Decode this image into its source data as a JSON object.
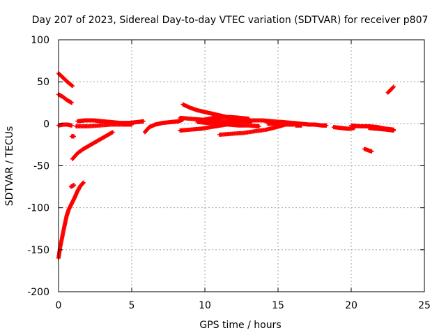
{
  "chart_data": {
    "type": "scatter",
    "title": "Day 207 of 2023, Sidereal Day-to-day VTEC variation (SDTVAR) for receiver p807",
    "xlabel": "GPS time / hours",
    "ylabel": "SDTVAR / TECUs",
    "xlim": [
      0,
      25
    ],
    "ylim": [
      -200,
      100
    ],
    "xticks": [
      0,
      5,
      10,
      15,
      20,
      25
    ],
    "yticks": [
      -200,
      -150,
      -100,
      -50,
      0,
      50,
      100
    ],
    "grid": true,
    "marker_color": "#ff0000",
    "series": [
      {
        "name": "SDTVAR",
        "tracks": [
          [
            [
              0.0,
              60
            ],
            [
              0.3,
              55
            ],
            [
              0.6,
              50
            ],
            [
              0.95,
              45
            ]
          ],
          [
            [
              0.0,
              35
            ],
            [
              0.3,
              32
            ],
            [
              0.6,
              28
            ],
            [
              0.9,
              25
            ]
          ],
          [
            [
              0.0,
              -160
            ],
            [
              0.1,
              -148
            ],
            [
              0.25,
              -135
            ],
            [
              0.4,
              -122
            ],
            [
              0.55,
              -110
            ],
            [
              0.7,
              -102
            ],
            [
              0.9,
              -95
            ],
            [
              1.1,
              -88
            ],
            [
              1.3,
              -80
            ],
            [
              1.5,
              -74
            ],
            [
              1.7,
              -70
            ]
          ],
          [
            [
              0.0,
              -2
            ],
            [
              0.3,
              -1
            ],
            [
              0.6,
              -1
            ],
            [
              0.9,
              -2
            ]
          ],
          [
            [
              0.9,
              -15
            ],
            [
              1.05,
              -15
            ]
          ],
          [
            [
              0.95,
              -42
            ],
            [
              1.3,
              -35
            ],
            [
              1.7,
              -30
            ],
            [
              2.1,
              -26
            ],
            [
              2.5,
              -22
            ],
            [
              2.9,
              -18
            ],
            [
              3.3,
              -14
            ],
            [
              3.7,
              -10
            ]
          ],
          [
            [
              0.85,
              -75
            ],
            [
              1.05,
              -73
            ]
          ],
          [
            [
              1.3,
              3
            ],
            [
              1.8,
              4
            ],
            [
              2.4,
              4
            ],
            [
              3.0,
              3
            ],
            [
              3.6,
              2
            ],
            [
              4.2,
              1
            ],
            [
              4.8,
              1
            ],
            [
              5.4,
              2
            ],
            [
              5.8,
              3
            ]
          ],
          [
            [
              1.2,
              -3
            ],
            [
              2.0,
              -3
            ],
            [
              2.8,
              -2
            ],
            [
              3.6,
              -1
            ],
            [
              4.4,
              -1
            ],
            [
              5.0,
              -1
            ]
          ],
          [
            [
              5.9,
              -10
            ],
            [
              6.2,
              -4
            ],
            [
              6.6,
              -1
            ],
            [
              7.1,
              1
            ],
            [
              7.7,
              2
            ],
            [
              8.2,
              3
            ],
            [
              8.5,
              5
            ]
          ],
          [
            [
              8.5,
              23
            ],
            [
              9.0,
              19
            ],
            [
              9.5,
              16
            ],
            [
              10.0,
              14
            ],
            [
              10.5,
              12
            ],
            [
              11.0,
              10
            ],
            [
              11.5,
              8
            ],
            [
              12.0,
              7
            ],
            [
              12.5,
              6
            ],
            [
              13.0,
              5
            ]
          ],
          [
            [
              8.3,
              -8
            ],
            [
              9.0,
              -7
            ],
            [
              9.7,
              -6
            ],
            [
              10.4,
              -4
            ],
            [
              11.1,
              -2
            ],
            [
              11.8,
              0
            ],
            [
              12.5,
              2
            ],
            [
              13.2,
              3
            ]
          ],
          [
            [
              8.3,
              7
            ],
            [
              9.0,
              6
            ],
            [
              9.7,
              5
            ],
            [
              10.4,
              4
            ],
            [
              11.1,
              3
            ],
            [
              11.8,
              3
            ],
            [
              12.5,
              3
            ]
          ],
          [
            [
              9.5,
              2
            ],
            [
              10.2,
              1
            ],
            [
              10.9,
              0
            ],
            [
              11.6,
              -1
            ],
            [
              12.3,
              -2
            ],
            [
              13.0,
              -2
            ],
            [
              13.7,
              -3
            ]
          ],
          [
            [
              10.0,
              5
            ],
            [
              10.6,
              7
            ],
            [
              11.2,
              8
            ],
            [
              11.8,
              8
            ],
            [
              12.4,
              7
            ],
            [
              13.0,
              6
            ]
          ],
          [
            [
              11.0,
              -13
            ],
            [
              11.8,
              -12
            ],
            [
              12.6,
              -11
            ],
            [
              13.4,
              -9
            ],
            [
              14.2,
              -7
            ],
            [
              14.9,
              -4
            ],
            [
              15.5,
              -1
            ]
          ],
          [
            [
              13.2,
              4
            ],
            [
              13.9,
              4
            ],
            [
              14.6,
              3
            ],
            [
              15.3,
              2
            ],
            [
              16.0,
              1
            ],
            [
              16.6,
              0
            ],
            [
              17.1,
              -1
            ]
          ],
          [
            [
              14.3,
              0
            ],
            [
              14.9,
              0
            ],
            [
              15.5,
              -1
            ],
            [
              16.1,
              -1
            ]
          ],
          [
            [
              16.2,
              -2
            ],
            [
              16.6,
              -2
            ]
          ],
          [
            [
              17.0,
              -1
            ],
            [
              17.5,
              -1
            ],
            [
              18.0,
              -2
            ],
            [
              18.3,
              -2
            ]
          ],
          [
            [
              18.8,
              -4
            ],
            [
              19.3,
              -5
            ],
            [
              19.8,
              -6
            ],
            [
              20.2,
              -5
            ]
          ],
          [
            [
              20.0,
              -2
            ],
            [
              20.6,
              -3
            ],
            [
              21.2,
              -3
            ],
            [
              21.8,
              -4
            ],
            [
              22.4,
              -6
            ],
            [
              22.9,
              -7
            ]
          ],
          [
            [
              21.2,
              -5
            ],
            [
              21.8,
              -6
            ],
            [
              22.4,
              -7
            ],
            [
              22.9,
              -8
            ]
          ],
          [
            [
              20.9,
              -30
            ],
            [
              21.4,
              -33
            ]
          ],
          [
            [
              22.5,
              37
            ],
            [
              22.9,
              44
            ]
          ]
        ]
      }
    ]
  }
}
